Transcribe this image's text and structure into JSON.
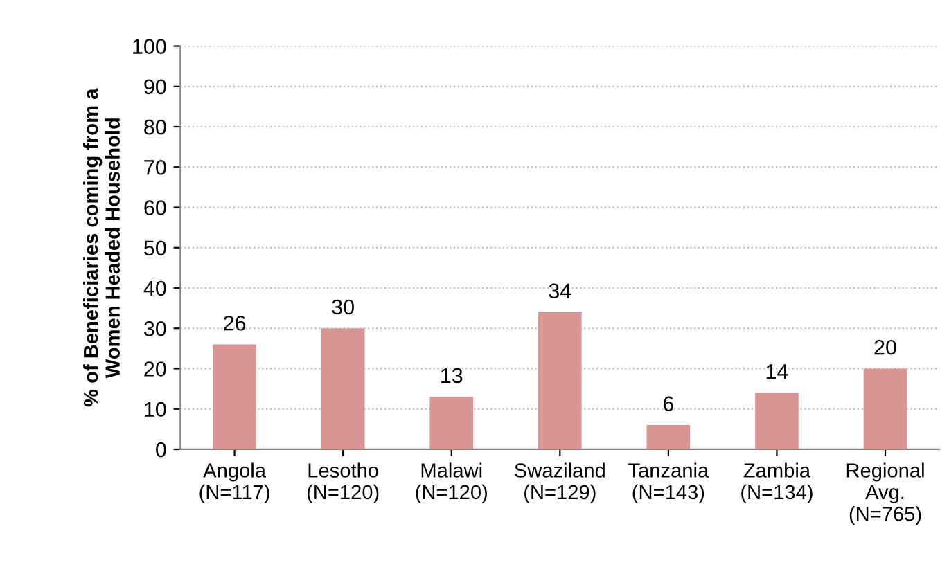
{
  "chart_data": {
    "type": "bar",
    "ylabel": "% of Beneficiaries coming from a\nWomen Headed Household",
    "categories": [
      "Angola\n(N=117)",
      "Lesotho\n(N=120)",
      "Malawi\n(N=120)",
      "Swaziland\n(N=129)",
      "Tanzania\n(N=143)",
      "Zambia\n(N=134)",
      "Regional\nAvg.\n(N=765)"
    ],
    "values": [
      26,
      30,
      13,
      34,
      6,
      14,
      20
    ],
    "color": "#d99594",
    "data_labels": true,
    "ylim": [
      0,
      100
    ],
    "yticks": [
      0,
      10,
      20,
      30,
      40,
      50,
      60,
      70,
      80,
      90,
      100
    ],
    "grid": "y",
    "legend": false
  }
}
